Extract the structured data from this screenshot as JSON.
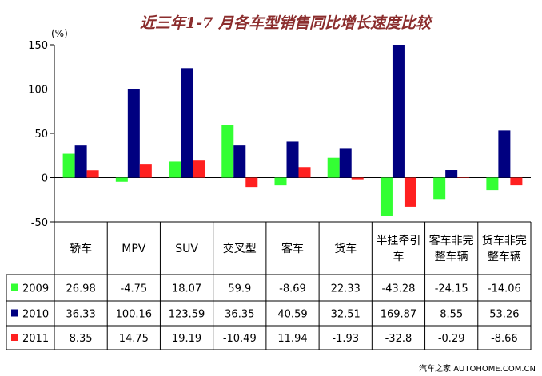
{
  "chart_data": {
    "type": "bar",
    "title": "近三年1-7 月各车型销售同比增长速度比较",
    "ylabel": "(%)",
    "ylim": [
      -50,
      150
    ],
    "yticks": [
      -50,
      0,
      50,
      100,
      150
    ],
    "tick_labels": [
      "-50",
      "0",
      "50",
      "100",
      "150"
    ],
    "categories": [
      [
        "轿车"
      ],
      [
        "MPV"
      ],
      [
        "SUV"
      ],
      [
        "交叉型"
      ],
      [
        "客车"
      ],
      [
        "货车"
      ],
      [
        "半挂牵引",
        "车"
      ],
      [
        "客车非完",
        "整车辆"
      ],
      [
        "货车非完",
        "整车辆"
      ]
    ],
    "series": [
      {
        "name": "2009",
        "color": "#33ff33",
        "values": [
          26.98,
          -4.75,
          18.07,
          59.9,
          -8.69,
          22.33,
          -43.28,
          -24.15,
          -14.06
        ],
        "labels": [
          "26.98",
          "-4.75",
          "18.07",
          "59.9",
          "-8.69",
          "22.33",
          "-43.28",
          "-24.15",
          "-14.06"
        ]
      },
      {
        "name": "2010",
        "color": "#000080",
        "values": [
          36.33,
          100.16,
          123.59,
          36.35,
          40.59,
          32.51,
          169.87,
          8.55,
          53.26
        ],
        "labels": [
          "36.33",
          "100.16",
          "123.59",
          "36.35",
          "40.59",
          "32.51",
          "169.87",
          "8.55",
          "53.26"
        ]
      },
      {
        "name": "2011",
        "color": "#ff2020",
        "values": [
          8.35,
          14.75,
          19.19,
          -10.49,
          11.94,
          -1.93,
          -32.8,
          -0.29,
          -8.66
        ],
        "labels": [
          "8.35",
          "14.75",
          "19.19",
          "-10.49",
          "11.94",
          "-1.93",
          "-32.8",
          "-0.29",
          "-8.66"
        ]
      }
    ],
    "legend": "left-table",
    "grid": false
  },
  "watermark": "汽车之家 AUTOHOME.COM.CN"
}
